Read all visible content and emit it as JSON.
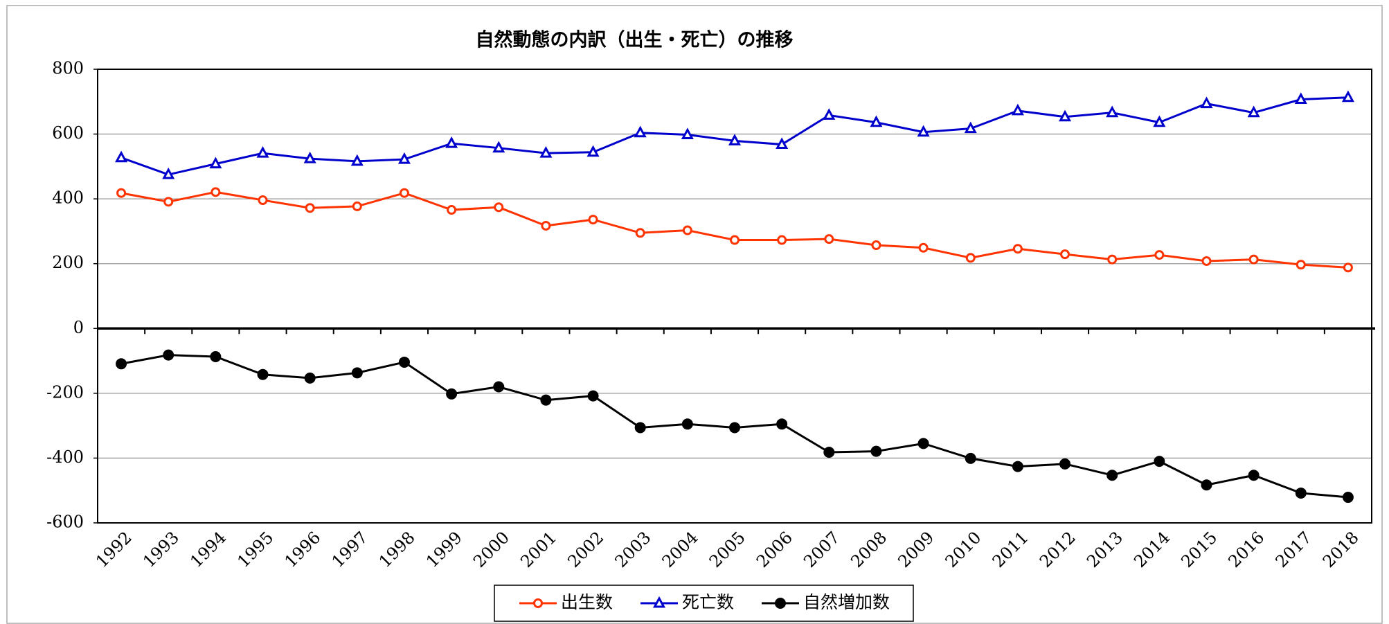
{
  "chart_data": {
    "type": "line",
    "title": "自然動態の内訳（出生・死亡）の推移",
    "categories": [
      "1992",
      "1993",
      "1994",
      "1995",
      "1996",
      "1997",
      "1998",
      "1999",
      "2000",
      "2001",
      "2002",
      "2003",
      "2004",
      "2005",
      "2006",
      "2007",
      "2008",
      "2009",
      "2010",
      "2011",
      "2012",
      "2013",
      "2014",
      "2015",
      "2016",
      "2017",
      "2018"
    ],
    "series": [
      {
        "name": "出生数",
        "color": "#ff3300",
        "marker": "open-circle",
        "values": [
          418,
          391,
          421,
          396,
          372,
          377,
          418,
          366,
          374,
          317,
          336,
          295,
          303,
          273,
          273,
          276,
          257,
          249,
          218,
          246,
          229,
          213,
          227,
          208,
          213,
          197,
          188
        ]
      },
      {
        "name": "死亡数",
        "color": "#0000cc",
        "marker": "open-triangle",
        "values": [
          527,
          475,
          508,
          541,
          524,
          516,
          522,
          571,
          557,
          541,
          544,
          604,
          598,
          579,
          568,
          658,
          636,
          606,
          617,
          672,
          653,
          666,
          636,
          694,
          666,
          707,
          713
        ]
      },
      {
        "name": "自然増加数",
        "color": "#000000",
        "marker": "filled-circle",
        "values": [
          -109,
          -82,
          -87,
          -142,
          -153,
          -137,
          -104,
          -202,
          -180,
          -221,
          -208,
          -306,
          -295,
          -306,
          -295,
          -382,
          -379,
          -355,
          -401,
          -426,
          -418,
          -453,
          -410,
          -483,
          -453,
          -508,
          -521
        ]
      }
    ],
    "ylim": [
      -600,
      800
    ],
    "yticks": [
      -600,
      -400,
      -200,
      0,
      200,
      400,
      600,
      800
    ],
    "grid": true
  }
}
